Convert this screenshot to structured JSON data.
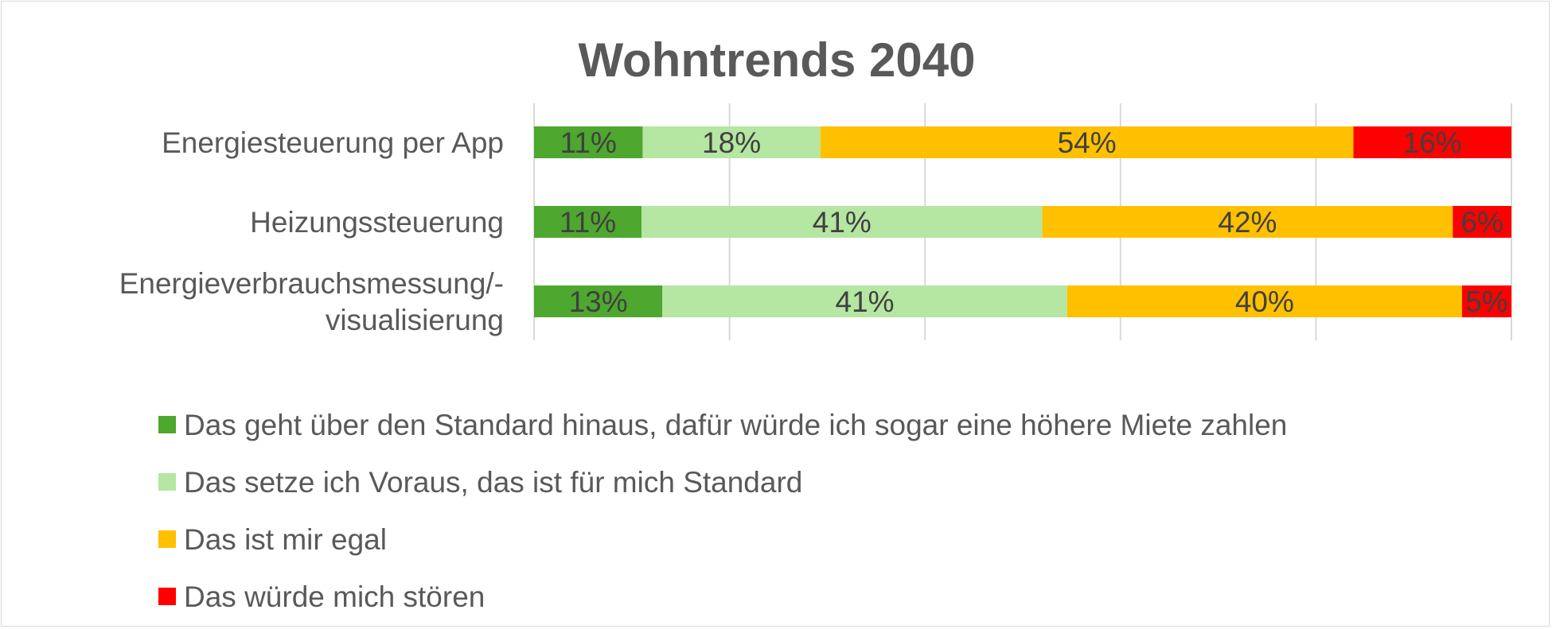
{
  "chart_data": {
    "type": "bar",
    "orientation": "horizontal",
    "stacked": "percent",
    "title": "Wohntrends 2040",
    "xlim": [
      0,
      100
    ],
    "grid": true,
    "legend_position": "bottom",
    "categories": [
      [
        "Energiesteuerung per App"
      ],
      [
        "Heizungssteuerung"
      ],
      [
        "Energieverbrauchsmessung/-",
        "visualisierung"
      ]
    ],
    "series": [
      {
        "name": "Das geht über den Standard hinaus, dafür würde ich sogar eine höhere Miete zahlen",
        "color": "#4ea72e",
        "values": [
          11,
          11,
          13
        ],
        "labels": [
          "11%",
          "11%",
          "13%"
        ]
      },
      {
        "name": "Das setze ich Voraus, das ist für mich Standard",
        "color": "#b5e6a2",
        "values": [
          18,
          41,
          41
        ],
        "labels": [
          "18%",
          "41%",
          "41%"
        ]
      },
      {
        "name": "Das ist mir egal",
        "color": "#ffc000",
        "values": [
          54,
          42,
          40
        ],
        "labels": [
          "54%",
          "42%",
          "40%"
        ]
      },
      {
        "name": "Das würde mich stören",
        "color": "#ff0000",
        "values": [
          16,
          6,
          5
        ],
        "labels": [
          "16%",
          "6%",
          "5%"
        ]
      }
    ]
  }
}
